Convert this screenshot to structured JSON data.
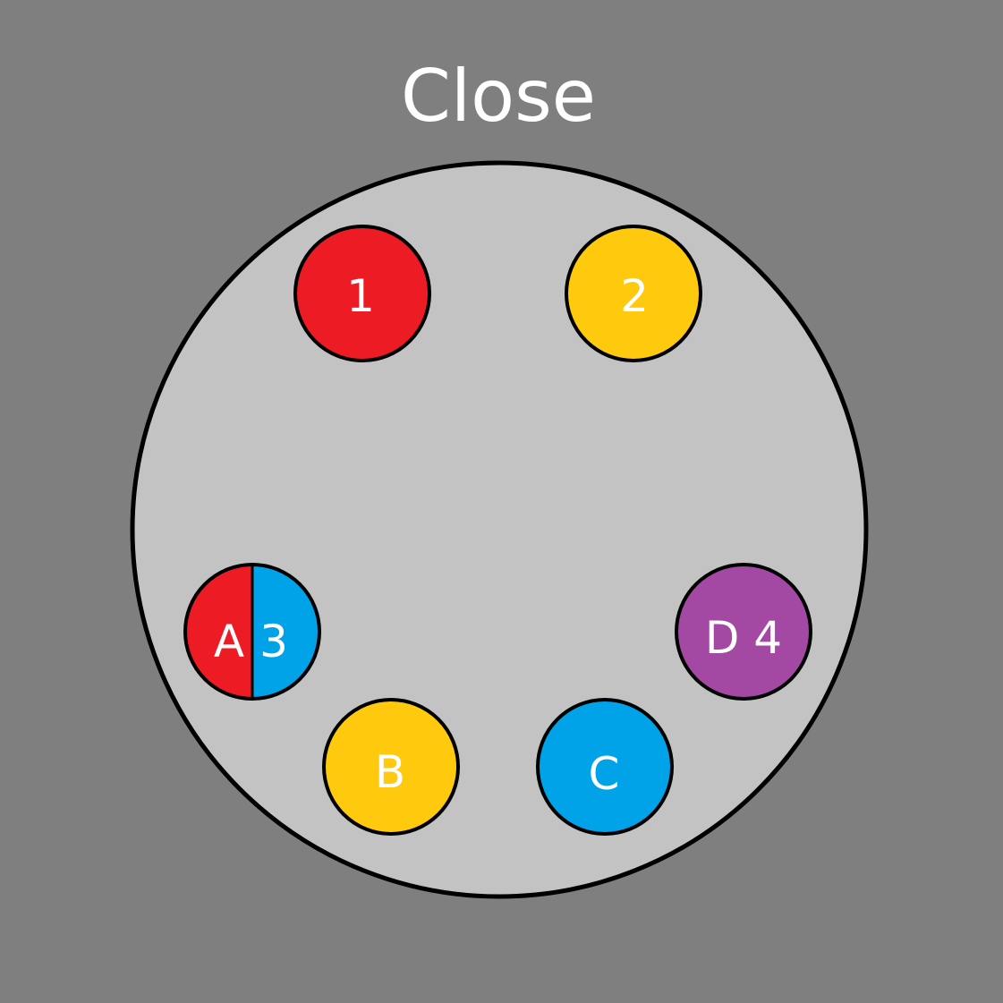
{
  "title": "Close",
  "colors": {
    "background": "#7f7f7f",
    "plate": "#c3c3c3",
    "outline": "#000000",
    "text": "#ffffff",
    "red": "#ed1c24",
    "yellow": "#ffc90e",
    "blue": "#00a2e8",
    "purple": "#a349a4"
  },
  "pins": [
    {
      "id": "pin-1",
      "label": "1",
      "color": "red"
    },
    {
      "id": "pin-2",
      "label": "2",
      "color": "yellow"
    },
    {
      "id": "pin-a3",
      "label_left": "A",
      "label_right": "3",
      "color_left": "red",
      "color_right": "blue"
    },
    {
      "id": "pin-d4",
      "label": "D 4",
      "color": "purple"
    },
    {
      "id": "pin-b",
      "label": "B",
      "color": "yellow"
    },
    {
      "id": "pin-c",
      "label": "C",
      "color": "blue"
    }
  ]
}
